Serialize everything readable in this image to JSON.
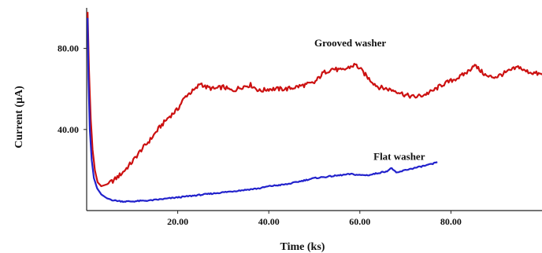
{
  "chart_data": {
    "type": "line",
    "xlabel": "Time (ks)",
    "ylabel": "Current (μA)",
    "xlim": [
      0,
      100
    ],
    "ylim": [
      0,
      100
    ],
    "x_ticks": [
      {
        "value": 20,
        "label": "20.00"
      },
      {
        "value": 40,
        "label": "40.00"
      },
      {
        "value": 60,
        "label": "60.00"
      },
      {
        "value": 80,
        "label": "80.00"
      }
    ],
    "y_ticks": [
      {
        "value": 40,
        "label": "40.00"
      },
      {
        "value": 80,
        "label": "80.00"
      }
    ],
    "grid": false,
    "series": [
      {
        "color": "#cc1111",
        "points": [
          [
            0.2,
            98
          ],
          [
            0.5,
            70
          ],
          [
            0.9,
            45
          ],
          [
            1.3,
            30
          ],
          [
            1.8,
            20
          ],
          [
            2.4,
            14
          ],
          [
            3.2,
            12
          ],
          [
            4.5,
            13
          ],
          [
            6,
            15
          ],
          [
            8,
            19
          ],
          [
            10,
            24
          ],
          [
            12,
            30
          ],
          [
            14,
            35
          ],
          [
            16,
            41
          ],
          [
            18,
            46
          ],
          [
            20,
            50
          ],
          [
            21,
            54
          ],
          [
            22,
            57
          ],
          [
            24,
            60
          ],
          [
            25,
            63
          ],
          [
            26,
            61
          ],
          [
            28,
            60
          ],
          [
            30,
            61
          ],
          [
            32,
            59
          ],
          [
            34,
            61
          ],
          [
            36,
            62
          ],
          [
            38,
            59
          ],
          [
            40,
            60
          ],
          [
            42,
            60
          ],
          [
            44,
            60
          ],
          [
            46,
            61
          ],
          [
            48,
            62
          ],
          [
            50,
            63
          ],
          [
            52,
            68
          ],
          [
            54,
            70
          ],
          [
            56,
            69
          ],
          [
            58,
            71
          ],
          [
            59,
            72
          ],
          [
            60,
            70
          ],
          [
            62,
            65
          ],
          [
            64,
            61
          ],
          [
            66,
            60
          ],
          [
            68,
            59
          ],
          [
            70,
            57
          ],
          [
            72,
            56
          ],
          [
            74,
            57
          ],
          [
            76,
            59
          ],
          [
            78,
            62
          ],
          [
            80,
            64
          ],
          [
            82,
            66
          ],
          [
            84,
            69
          ],
          [
            85,
            72
          ],
          [
            86,
            70
          ],
          [
            88,
            66
          ],
          [
            90,
            66
          ],
          [
            92,
            68
          ],
          [
            94,
            70
          ],
          [
            95,
            71
          ],
          [
            96,
            69
          ],
          [
            98,
            68
          ],
          [
            100,
            67
          ]
        ]
      },
      {
        "color": "#2222cc",
        "points": [
          [
            0.2,
            95
          ],
          [
            0.4,
            65
          ],
          [
            0.7,
            40
          ],
          [
            1.1,
            25
          ],
          [
            1.6,
            16
          ],
          [
            2.3,
            11
          ],
          [
            3.2,
            8
          ],
          [
            4.5,
            6
          ],
          [
            6,
            5
          ],
          [
            8,
            4.5
          ],
          [
            10,
            4.5
          ],
          [
            12,
            4.8
          ],
          [
            14,
            5
          ],
          [
            16,
            5.5
          ],
          [
            18,
            6
          ],
          [
            20,
            6.5
          ],
          [
            22,
            7
          ],
          [
            24,
            7.5
          ],
          [
            26,
            8
          ],
          [
            28,
            8.5
          ],
          [
            30,
            9
          ],
          [
            32,
            9.5
          ],
          [
            34,
            10
          ],
          [
            36,
            10.5
          ],
          [
            38,
            11
          ],
          [
            40,
            12
          ],
          [
            42,
            12.5
          ],
          [
            44,
            13
          ],
          [
            46,
            14
          ],
          [
            48,
            15
          ],
          [
            50,
            16
          ],
          [
            52,
            16.5
          ],
          [
            54,
            17
          ],
          [
            56,
            17.5
          ],
          [
            58,
            18
          ],
          [
            60,
            17.5
          ],
          [
            62,
            17.5
          ],
          [
            64,
            18.5
          ],
          [
            66,
            19.5
          ],
          [
            67,
            21
          ],
          [
            68,
            18.5
          ],
          [
            70,
            20
          ],
          [
            72,
            21
          ],
          [
            74,
            22
          ],
          [
            76,
            23
          ],
          [
            77,
            24
          ]
        ]
      }
    ],
    "annotations": [
      {
        "text": "Grooved washer",
        "x": 50,
        "y": 81
      },
      {
        "text": "Flat washer",
        "x": 63,
        "y": 25
      }
    ]
  }
}
